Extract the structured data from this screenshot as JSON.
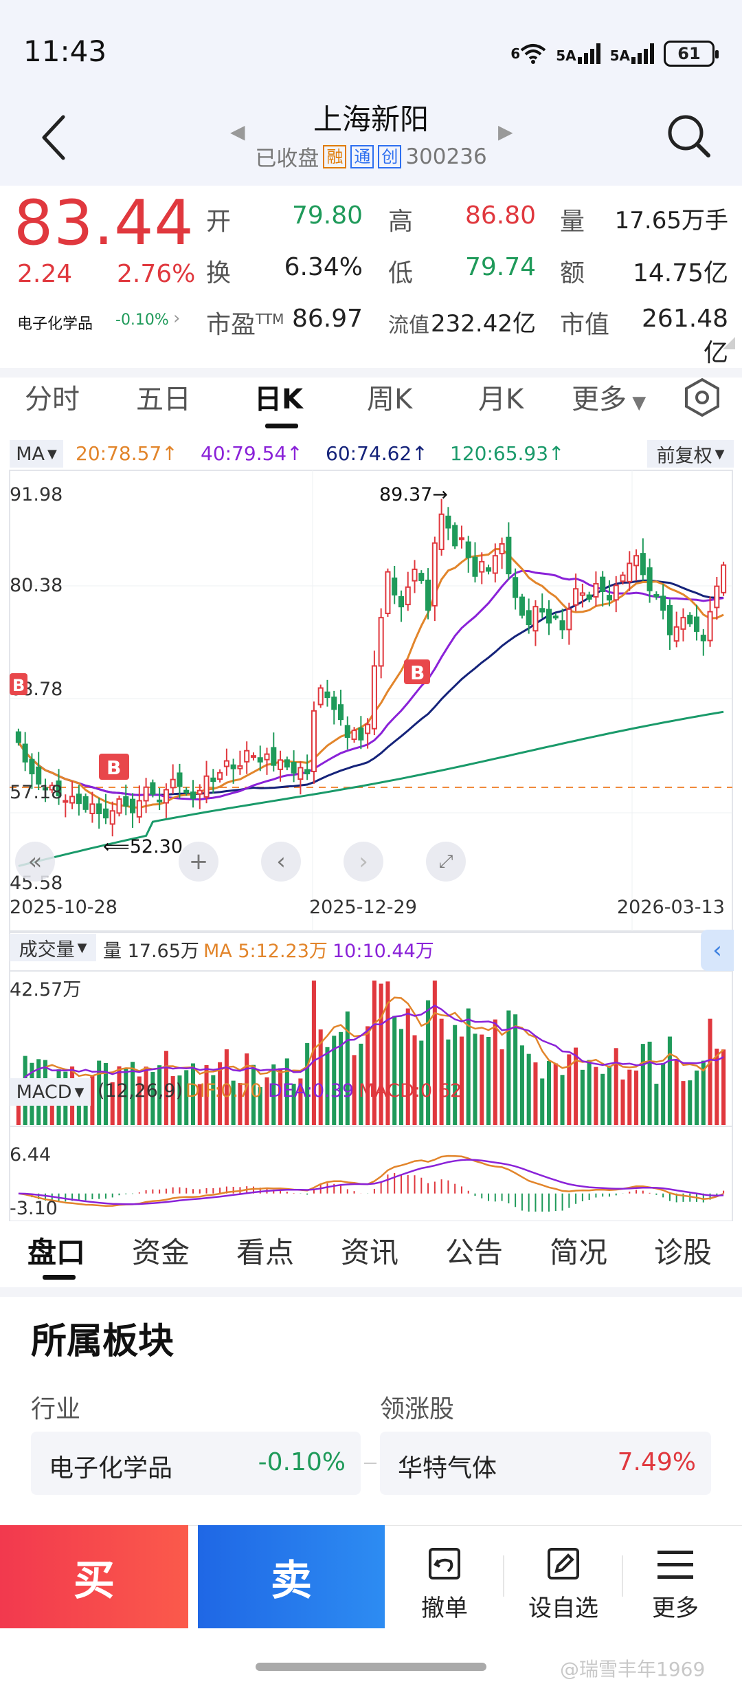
{
  "status_bar": {
    "time": "11:43",
    "wifi_badge": "6",
    "sim1": "5A",
    "sim2": "5A",
    "battery": "61"
  },
  "header": {
    "stock_name": "上海新阳",
    "market_status": "已收盘",
    "tags": [
      "融",
      "通",
      "创"
    ],
    "code": "300236"
  },
  "quote": {
    "price": "83.44",
    "change_abs": "2.24",
    "change_pct": "2.76%",
    "sector_name": "电子化学品",
    "sector_pct": "-0.10%",
    "fields": {
      "open": {
        "label": "开",
        "value": "79.80"
      },
      "high": {
        "label": "高",
        "value": "86.80"
      },
      "volume": {
        "label": "量",
        "value": "17.65万手"
      },
      "turnover_rate": {
        "label": "换",
        "value": "6.34%"
      },
      "low": {
        "label": "低",
        "value": "79.74"
      },
      "amount": {
        "label": "额",
        "value": "14.75亿"
      },
      "pe": {
        "label": "市盈",
        "suffix": "TTM",
        "value": "86.97"
      },
      "float_cap": {
        "label": "流值",
        "value": "232.42亿"
      },
      "market_cap": {
        "label": "市值",
        "value": "261.48亿"
      }
    }
  },
  "period_tabs": [
    "分时",
    "五日",
    "日K",
    "周K",
    "月K",
    "更多"
  ],
  "active_period": "日K",
  "ma_bar": {
    "selector": "MA",
    "ma20": "20:78.57",
    "ma40": "40:79.54",
    "ma60": "60:74.62",
    "ma120": "120:65.93",
    "adjust": "前复权"
  },
  "colors": {
    "up": "#e0383e",
    "down": "#1f9a5a",
    "ma20": "#e2852b",
    "ma40": "#8a22d8",
    "ma60": "#15237a",
    "ma120": "#1a9a6a"
  },
  "chart_data": [
    {
      "type": "candlestick",
      "y_ticks": [
        "91.98",
        "80.38",
        "68.78",
        "57.18",
        "45.58"
      ],
      "ylim": [
        45.58,
        91.98
      ],
      "x_labels": [
        "2025-10-28",
        "2025-12-29",
        "2026-03-13"
      ],
      "annotations": {
        "high": "89.37",
        "low": "52.30",
        "buy_mark": "B"
      },
      "dashed_line_value": 57.18,
      "closes": [
        62.5,
        60.2,
        58.8,
        57.6,
        56.9,
        57.4,
        56.2,
        55.6,
        56.1,
        55.3,
        54.6,
        55.2,
        54.1,
        53.6,
        54.4,
        55.8,
        55.0,
        54.2,
        55.6,
        57.2,
        56.4,
        55.6,
        56.9,
        58.1,
        57.3,
        56.6,
        55.9,
        56.8,
        58.5,
        57.9,
        58.9,
        60.3,
        59.4,
        59.7,
        61.5,
        60.9,
        60.2,
        61.1,
        59.8,
        60.4,
        59.6,
        58.9,
        59.5,
        58.8,
        66.2,
        68.9,
        67.8,
        66.4,
        65.2,
        63.1,
        63.9,
        62.8,
        64.6,
        71.5,
        77.2,
        82.6,
        79.9,
        78.5,
        80.8,
        82.9,
        81.6,
        78.1,
        86.0,
        89.4,
        87.8,
        85.7,
        86.6,
        84.3,
        82.1,
        83.8,
        82.7,
        84.5,
        85.9,
        82.4,
        79.6,
        77.5,
        76.4,
        78.5,
        77.9,
        76.6,
        77.3,
        75.8,
        78.2,
        80.6,
        80.1,
        79.4,
        81.2,
        80.3,
        79.3,
        81.0,
        82.2,
        83.6,
        84.5,
        82.3,
        80.4,
        79.7,
        78.1,
        75.2,
        76.1,
        77.2,
        76.5,
        75.6,
        74.5,
        77.9,
        80.9,
        83.4
      ]
    },
    {
      "type": "bar",
      "name": "成交量",
      "legend": {
        "vol": "量 17.65万",
        "ma5": "MA 5:12.23万",
        "ma10": "10:10.44万"
      },
      "y_top_label": "42.57万"
    },
    {
      "type": "macd",
      "name": "MACD",
      "params": "(12,26,9)",
      "dif": "DIF:0.70",
      "dea": "DEA:0.39",
      "macd": "MACD:0.62",
      "y_top_label": "6.44",
      "y_bottom_label": "-3.10"
    }
  ],
  "bottom_tabs": [
    "盘口",
    "资金",
    "看点",
    "资讯",
    "公告",
    "简况",
    "诊股"
  ],
  "active_bottom_tab": "盘口",
  "sector_panel": {
    "title": "所属板块",
    "industry_label": "行业",
    "leader_label": "领涨股",
    "industry_name": "电子化学品",
    "industry_pct": "-0.10%",
    "leader_name": "华特气体",
    "leader_pct": "7.49%"
  },
  "actions": {
    "buy": "买",
    "sell": "卖",
    "cancel": "撤单",
    "watch": "设自选",
    "more": "更多"
  },
  "watermark": "@瑞雪丰年1969"
}
